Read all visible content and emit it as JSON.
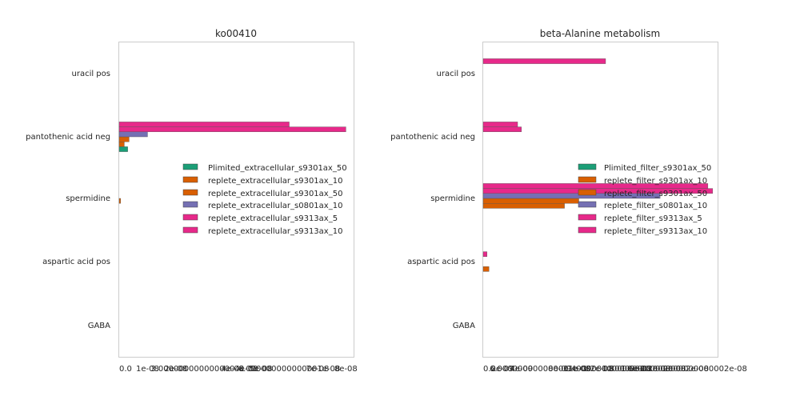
{
  "chart_data": [
    {
      "type": "bar",
      "orientation": "horizontal",
      "title": "ko00410",
      "categories": [
        "uracil pos",
        "pantothenic acid neg",
        "spermidine",
        "aspartic acid pos",
        "GABA"
      ],
      "xlim": [
        0,
        8.3e-08
      ],
      "xtick_labels": [
        "0.0",
        "1e-08",
        "2e-08",
        "3.0000000000000004e-08",
        "4e-08",
        "5e-08",
        "6.000000000000001e-08",
        "7e-08",
        "8e-08"
      ],
      "xtick_values": [
        0,
        1e-08,
        2e-08,
        3e-08,
        4e-08,
        5e-08,
        6e-08,
        7e-08,
        8e-08
      ],
      "legend_position": "center-right",
      "grid": false,
      "series": [
        {
          "name": "Plimited_extracellular_s9301ax_50",
          "color": "#1b9e77",
          "values": [
            0,
            3e-09,
            0,
            0,
            0
          ]
        },
        {
          "name": "replete_extracellular_s9301ax_10",
          "color": "#d95f02",
          "values": [
            0,
            1.8e-09,
            0,
            0,
            0
          ]
        },
        {
          "name": "replete_extracellular_s9301ax_50",
          "color": "#d95f02",
          "values": [
            0,
            3.5e-09,
            5e-10,
            0,
            0
          ]
        },
        {
          "name": "replete_extracellular_s0801ax_10",
          "color": "#7570b3",
          "values": [
            0,
            1e-08,
            0,
            0,
            0
          ]
        },
        {
          "name": "replete_extracellular_s9313ax_5",
          "color": "#e7298a",
          "values": [
            0,
            8e-08,
            0,
            0,
            0
          ]
        },
        {
          "name": "replete_extracellular_s9313ax_10",
          "color": "#e7298a",
          "values": [
            0,
            6e-08,
            0,
            0,
            0
          ]
        }
      ]
    },
    {
      "type": "bar",
      "orientation": "horizontal",
      "title": "beta-Alanine metabolism",
      "categories": [
        "uracil pos",
        "pantothenic acid neg",
        "spermidine",
        "aspartic acid pos",
        "GABA"
      ],
      "xlim": [
        0,
        2.46e-08
      ],
      "xtick_labels": [
        "0.0",
        "2e-09",
        "4e-09",
        "6.000000000000001e-09",
        "8e-09",
        "1e-08",
        "1.2e-08",
        "1.4000000000000001e-08",
        "1.6e-08",
        "1.8000000000000002e-08",
        "2e-08",
        "2.2000000000000002e-08"
      ],
      "xtick_values": [
        0,
        2e-09,
        4e-09,
        6e-09,
        8e-09,
        1e-08,
        1.2e-08,
        1.4e-08,
        1.6e-08,
        1.8e-08,
        2e-08,
        2.2e-08
      ],
      "legend_position": "center-right",
      "grid": false,
      "series": [
        {
          "name": "Plimited_filter_s9301ax_50",
          "color": "#1b9e77",
          "values": [
            0,
            0,
            0,
            0,
            0
          ]
        },
        {
          "name": "replete_filter_s9301ax_10",
          "color": "#d95f02",
          "values": [
            0,
            0,
            8.5e-09,
            6e-10,
            0
          ]
        },
        {
          "name": "replete_filter_s9301ax_50",
          "color": "#d95f02",
          "values": [
            0,
            0,
            1e-08,
            0,
            0
          ]
        },
        {
          "name": "replete_filter_s0801ax_10",
          "color": "#7570b3",
          "values": [
            0,
            0,
            1.85e-08,
            0,
            0
          ]
        },
        {
          "name": "replete_filter_s9313ax_5",
          "color": "#e7298a",
          "values": [
            0,
            4e-09,
            2.4e-08,
            4e-10,
            0
          ]
        },
        {
          "name": "replete_filter_s9313ax_10",
          "color": "#e7298a",
          "values": [
            1.28e-08,
            3.6e-09,
            2.35e-08,
            0,
            0
          ]
        }
      ]
    }
  ]
}
